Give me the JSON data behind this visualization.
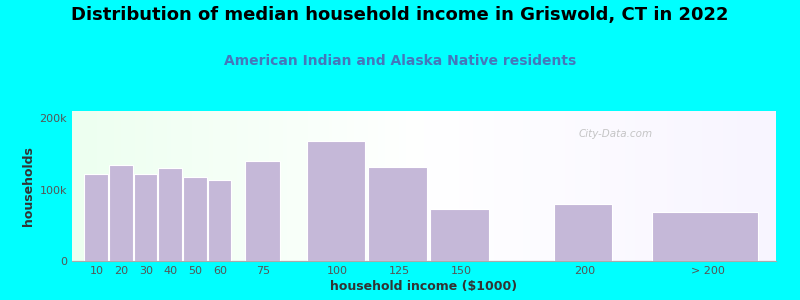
{
  "title": "Distribution of median household income in Griswold, CT in 2022",
  "subtitle": "American Indian and Alaska Native residents",
  "xlabel": "household income ($1000)",
  "ylabel": "households",
  "background_color": "#00FFFF",
  "bar_color": "#c5b8d8",
  "bar_edge_color": "#ffffff",
  "categories": [
    "10",
    "20",
    "30",
    "40",
    "50",
    "60",
    "75",
    "100",
    "125",
    "150",
    "200",
    "> 200"
  ],
  "values": [
    122000,
    135000,
    122000,
    130000,
    118000,
    113000,
    140000,
    168000,
    132000,
    73000,
    80000,
    68000
  ],
  "ylim": [
    0,
    210000
  ],
  "ytick_labels": [
    "0",
    "100k",
    "200k"
  ],
  "ytick_values": [
    0,
    100000,
    200000
  ],
  "title_fontsize": 13,
  "subtitle_fontsize": 10,
  "axis_label_fontsize": 9,
  "tick_fontsize": 8,
  "watermark_text": "City-Data.com",
  "title_color": "#000000",
  "subtitle_color": "#4477bb",
  "axis_label_color": "#333333",
  "x_positions": [
    10,
    20,
    30,
    40,
    50,
    60,
    75,
    100,
    125,
    150,
    200,
    240
  ],
  "bar_widths": [
    10,
    10,
    10,
    10,
    10,
    10,
    15,
    25,
    25,
    25,
    25,
    45
  ],
  "xlim": [
    5,
    290
  ]
}
